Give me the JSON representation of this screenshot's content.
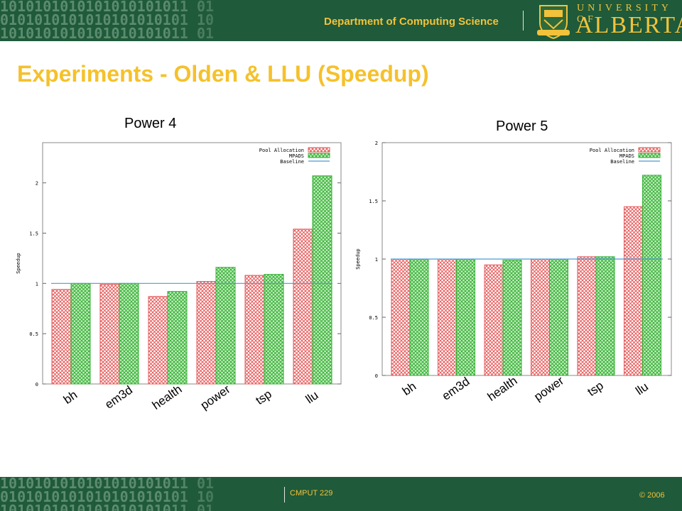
{
  "header": {
    "department": "Department of Computing Science",
    "university_top": "UNIVERSITY OF",
    "university_main": "ALBERTA"
  },
  "slide": {
    "title": "Experiments - Olden & LLU (Speedup)"
  },
  "footer": {
    "course": "CMPUT 229",
    "copyright": "© 2006"
  },
  "colors": {
    "header_bg": "#1f5a3a",
    "title": "#f5c12b",
    "pool_allocation": "#e65a5a",
    "mpads": "#35b035",
    "baseline": "#4a9ad6"
  },
  "chart_data": [
    {
      "type": "bar",
      "title": "Power 4",
      "ylabel": "Speedup",
      "ylim": [
        0,
        2.4
      ],
      "yticks": [
        0,
        0.5,
        1,
        1.5,
        2
      ],
      "ytick_labels": [
        "0",
        "0.5",
        "1",
        "1.5",
        "2"
      ],
      "categories": [
        "bh",
        "em3d",
        "health",
        "power",
        "tsp",
        "llu"
      ],
      "legend_position": "top-right",
      "series": [
        {
          "name": "Pool Allocation",
          "values": [
            0.94,
            0.99,
            0.87,
            1.02,
            1.08,
            1.54
          ]
        },
        {
          "name": "MPADS",
          "values": [
            1.0,
            1.0,
            0.92,
            1.16,
            1.09,
            2.07
          ]
        }
      ],
      "baseline": {
        "name": "Baseline",
        "value": 1
      }
    },
    {
      "type": "bar",
      "title": "Power 5",
      "ylabel": "Speedup",
      "ylim": [
        0,
        2
      ],
      "yticks": [
        0,
        0.5,
        1,
        1.5,
        2
      ],
      "ytick_labels": [
        "0",
        "0.5",
        "1",
        "1.5",
        "2"
      ],
      "categories": [
        "bh",
        "em3d",
        "health",
        "power",
        "tsp",
        "llu"
      ],
      "legend_position": "top-right",
      "series": [
        {
          "name": "Pool Allocation",
          "values": [
            1.0,
            1.0,
            0.95,
            1.0,
            1.02,
            1.45
          ]
        },
        {
          "name": "MPADS",
          "values": [
            1.0,
            1.0,
            0.99,
            1.0,
            1.02,
            1.72
          ]
        }
      ],
      "baseline": {
        "name": "Baseline",
        "value": 1
      }
    }
  ]
}
